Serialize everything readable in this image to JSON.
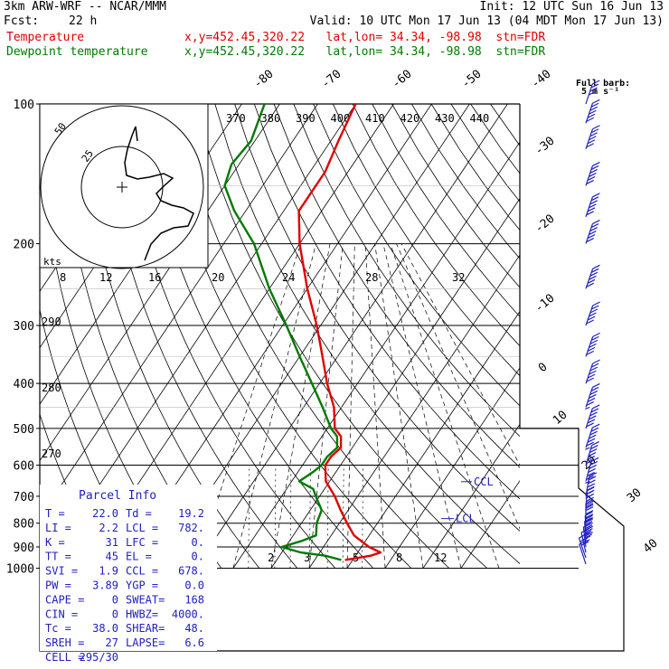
{
  "header": {
    "model": "3km ARW-WRF -- NCAR/MMM",
    "init": "Init: 12 UTC Sun 16 Jun 13",
    "fcst_label": "Fcst:",
    "fcst_hours": "22 h",
    "valid": "Valid: 10 UTC Mon 17 Jun 13 (04 MDT Mon 17 Jun 13)",
    "temp_label": "Temperature",
    "temp_info": "x,y=452.45,320.22   lat,lon= 34.34, -98.98  stn=FDR",
    "dew_label": "Dewpoint temperature",
    "dew_info": "x,y=452.45,320.22   lat,lon= 34.34, -98.98  stn=FDR"
  },
  "full_barb_label": "Full barb:",
  "full_barb_units": "5 m s⁻¹",
  "chart_data": {
    "type": "line",
    "title": "",
    "ylabel": "",
    "xlabel": "",
    "pressure_ticks": [
      100,
      200,
      300,
      400,
      500,
      600,
      700,
      800,
      900,
      1000
    ],
    "isotherm_labels": [
      -80,
      -70,
      -60,
      -50,
      -40,
      -30,
      -20,
      -10,
      0,
      10,
      20,
      30,
      40
    ],
    "theta_labels": [
      370,
      380,
      390,
      400,
      410,
      420,
      430,
      440
    ],
    "theta_left_labels": [
      290,
      280,
      270
    ],
    "mixing_ratio_labels": [
      "2",
      "3",
      "5",
      "8",
      "12"
    ],
    "colors": {
      "temperature": "#e00000",
      "dewpoint": "#007a00",
      "barbs": "#2020c0"
    },
    "series": [
      {
        "name": "Temperature",
        "points": [
          [
            960,
            18
          ],
          [
            940,
            24
          ],
          [
            925,
            26
          ],
          [
            900,
            22
          ],
          [
            875,
            19
          ],
          [
            850,
            16
          ],
          [
            800,
            12
          ],
          [
            750,
            8
          ],
          [
            700,
            4
          ],
          [
            650,
            -1
          ],
          [
            600,
            -4
          ],
          [
            575,
            -4
          ],
          [
            550,
            -3
          ],
          [
            520,
            -5
          ],
          [
            500,
            -8
          ],
          [
            450,
            -12
          ],
          [
            400,
            -18
          ],
          [
            350,
            -24
          ],
          [
            300,
            -31
          ],
          [
            250,
            -40
          ],
          [
            200,
            -50
          ],
          [
            170,
            -56
          ],
          [
            140,
            -56
          ],
          [
            120,
            -58
          ],
          [
            100,
            -60
          ]
        ]
      },
      {
        "name": "Dewpoint temperature",
        "points": [
          [
            960,
            17
          ],
          [
            940,
            12
          ],
          [
            925,
            5
          ],
          [
            900,
            -1
          ],
          [
            875,
            3
          ],
          [
            850,
            6
          ],
          [
            800,
            4
          ],
          [
            750,
            3
          ],
          [
            700,
            -1
          ],
          [
            675,
            -3
          ],
          [
            650,
            -8
          ],
          [
            620,
            -6
          ],
          [
            600,
            -5
          ],
          [
            575,
            -5
          ],
          [
            550,
            -4
          ],
          [
            520,
            -6
          ],
          [
            500,
            -9
          ],
          [
            450,
            -15
          ],
          [
            400,
            -22
          ],
          [
            350,
            -30
          ],
          [
            300,
            -39
          ],
          [
            250,
            -50
          ],
          [
            200,
            -62
          ],
          [
            170,
            -73
          ],
          [
            150,
            -80
          ],
          [
            135,
            -82
          ],
          [
            120,
            -81
          ],
          [
            100,
            -84
          ]
        ]
      }
    ],
    "lcl_label": "LCL",
    "ccl_label": "CCL",
    "wind_profile": [
      [
        980,
        70,
        2
      ],
      [
        950,
        100,
        6
      ],
      [
        925,
        140,
        7
      ],
      [
        900,
        160,
        9
      ],
      [
        875,
        170,
        10
      ],
      [
        850,
        175,
        11
      ],
      [
        800,
        180,
        12
      ],
      [
        750,
        190,
        12
      ],
      [
        700,
        210,
        13
      ],
      [
        650,
        230,
        13
      ],
      [
        600,
        240,
        14
      ],
      [
        550,
        250,
        15
      ],
      [
        500,
        250,
        16
      ],
      [
        450,
        255,
        17
      ],
      [
        400,
        260,
        18
      ],
      [
        350,
        270,
        20
      ],
      [
        300,
        275,
        22
      ],
      [
        250,
        280,
        24
      ],
      [
        200,
        285,
        28
      ],
      [
        175,
        285,
        30
      ],
      [
        150,
        285,
        32
      ],
      [
        125,
        285,
        30
      ],
      [
        110,
        285,
        22
      ],
      [
        100,
        290,
        8
      ]
    ],
    "hodograph": {
      "kts_label": "kts",
      "ring_labels": [
        "25",
        "50"
      ],
      "radial_labels": [
        "8",
        "12",
        "16",
        "20",
        "24",
        "28",
        "32"
      ],
      "points": [
        [
          160,
          288
        ],
        [
          167,
          270
        ],
        [
          178,
          258
        ],
        [
          192,
          252
        ],
        [
          208,
          250
        ],
        [
          214,
          236
        ],
        [
          203,
          230
        ],
        [
          190,
          227
        ],
        [
          178,
          222
        ],
        [
          173,
          214
        ],
        [
          181,
          206
        ],
        [
          191,
          197
        ],
        [
          181,
          192
        ],
        [
          165,
          196
        ],
        [
          152,
          198
        ],
        [
          140,
          194
        ],
        [
          138,
          180
        ],
        [
          141,
          165
        ],
        [
          146,
          150
        ],
        [
          150,
          140
        ],
        [
          152,
          156
        ]
      ]
    }
  },
  "parcel_info": {
    "title": "Parcel Info",
    "rows": [
      [
        "T  =",
        "22.0",
        "Td =",
        "19.2"
      ],
      [
        "LI =",
        "2.2",
        "LCL =",
        "782."
      ],
      [
        "K  =",
        "31",
        "LFC =",
        "0."
      ],
      [
        "TT =",
        "45",
        "EL =",
        "0."
      ],
      [
        "SVI =",
        "1.9",
        "CCL =",
        "678."
      ],
      [
        "PW =",
        "3.89",
        "YGP =",
        "0.0"
      ],
      [
        "CAPE =",
        "0",
        "SWEAT=",
        "168"
      ],
      [
        "CIN =",
        "0",
        "HWBZ=",
        "4000."
      ],
      [
        "Tc =",
        "38.0",
        "SHEAR=",
        "48."
      ],
      [
        "SREH =",
        "27",
        "LAPSE=",
        "6.6"
      ],
      [
        "CELL =",
        "295/30",
        "",
        ""
      ]
    ]
  }
}
